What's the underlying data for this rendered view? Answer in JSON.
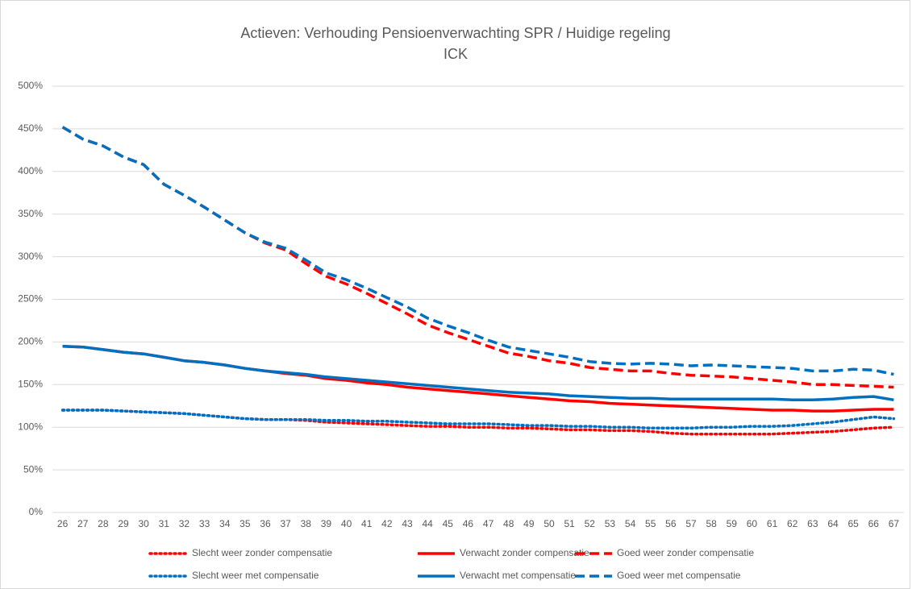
{
  "chart_data": {
    "type": "line",
    "title": "Actieven: Verhouding Pensioenverwachting SPR / Huidige regeling",
    "subtitle": "ICK",
    "categories": [
      "26",
      "27",
      "28",
      "29",
      "30",
      "31",
      "32",
      "33",
      "34",
      "35",
      "36",
      "37",
      "38",
      "39",
      "40",
      "41",
      "42",
      "43",
      "44",
      "45",
      "46",
      "47",
      "48",
      "49",
      "50",
      "51",
      "52",
      "53",
      "54",
      "55",
      "56",
      "57",
      "58",
      "59",
      "60",
      "61",
      "62",
      "63",
      "64",
      "65",
      "66",
      "67"
    ],
    "ylim": [
      0,
      500
    ],
    "yticks": [
      {
        "value": 0,
        "label": "0%"
      },
      {
        "value": 50,
        "label": "50%"
      },
      {
        "value": 100,
        "label": "100%"
      },
      {
        "value": 150,
        "label": "150%"
      },
      {
        "value": 200,
        "label": "200%"
      },
      {
        "value": 250,
        "label": "250%"
      },
      {
        "value": 300,
        "label": "300%"
      },
      {
        "value": 350,
        "label": "350%"
      },
      {
        "value": 400,
        "label": "400%"
      },
      {
        "value": 450,
        "label": "450%"
      },
      {
        "value": 500,
        "label": "500%"
      }
    ],
    "grid": true,
    "legend": "bottom",
    "series": [
      {
        "name": "Slecht weer zonder compensatie",
        "color": "#ff0000",
        "style": "dotted",
        "values": [
          120,
          120,
          120,
          119,
          118,
          117,
          116,
          114,
          112,
          110,
          109,
          109,
          108,
          106,
          105,
          104,
          103,
          102,
          101,
          101,
          100,
          100,
          99,
          99,
          98,
          97,
          97,
          96,
          96,
          95,
          93,
          92,
          92,
          92,
          92,
          92,
          93,
          94,
          95,
          97,
          99,
          100
        ]
      },
      {
        "name": "Verwacht zonder compensatie",
        "color": "#ff0000",
        "style": "solid",
        "values": [
          195,
          194,
          191,
          188,
          186,
          182,
          178,
          176,
          173,
          169,
          166,
          163,
          161,
          157,
          155,
          152,
          150,
          147,
          145,
          143,
          141,
          139,
          137,
          135,
          133,
          131,
          130,
          128,
          127,
          126,
          125,
          124,
          123,
          122,
          121,
          120,
          120,
          119,
          119,
          120,
          121,
          121
        ]
      },
      {
        "name": "Goed weer zonder compensatie",
        "color": "#ff0000",
        "style": "dashed",
        "values": [
          452,
          438,
          430,
          417,
          408,
          385,
          372,
          358,
          343,
          328,
          316,
          308,
          292,
          277,
          268,
          257,
          245,
          233,
          220,
          211,
          203,
          195,
          187,
          183,
          178,
          175,
          170,
          168,
          166,
          166,
          163,
          161,
          160,
          159,
          157,
          155,
          153,
          150,
          150,
          149,
          148,
          147
        ]
      },
      {
        "name": "Slecht weer met compensatie",
        "color": "#0070c0",
        "style": "dotted",
        "values": [
          120,
          120,
          120,
          119,
          118,
          117,
          116,
          114,
          112,
          110,
          109,
          109,
          109,
          108,
          108,
          107,
          107,
          106,
          105,
          104,
          104,
          104,
          103,
          102,
          102,
          101,
          101,
          100,
          100,
          99,
          99,
          99,
          100,
          100,
          101,
          101,
          102,
          104,
          106,
          109,
          112,
          110
        ]
      },
      {
        "name": "Verwacht met compensatie",
        "color": "#0070c0",
        "style": "solid",
        "values": [
          195,
          194,
          191,
          188,
          186,
          182,
          178,
          176,
          173,
          169,
          166,
          164,
          162,
          159,
          157,
          155,
          153,
          151,
          149,
          147,
          145,
          143,
          141,
          140,
          139,
          137,
          136,
          135,
          134,
          134,
          133,
          133,
          133,
          133,
          133,
          133,
          132,
          132,
          133,
          135,
          136,
          132
        ]
      },
      {
        "name": "Goed weer met compensatie",
        "color": "#0070c0",
        "style": "dashed",
        "values": [
          452,
          438,
          430,
          417,
          408,
          385,
          372,
          358,
          343,
          328,
          317,
          310,
          296,
          281,
          273,
          263,
          252,
          241,
          228,
          219,
          211,
          202,
          194,
          190,
          186,
          182,
          177,
          175,
          174,
          175,
          174,
          172,
          173,
          172,
          171,
          170,
          169,
          166,
          166,
          168,
          167,
          162
        ]
      }
    ]
  }
}
